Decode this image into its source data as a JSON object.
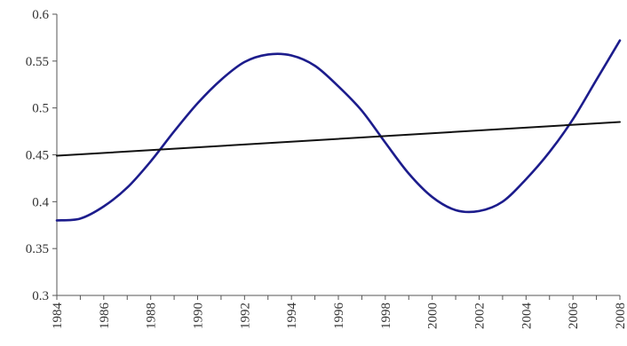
{
  "chart_data": {
    "type": "line",
    "title": "",
    "xlabel": "",
    "ylabel": "",
    "xlim": [
      1984,
      2008
    ],
    "ylim": [
      0.3,
      0.6
    ],
    "y_ticks": [
      "0.3",
      "0.35",
      "0.4",
      "0.45",
      "0.5",
      "0.55",
      "0.6"
    ],
    "y_tick_values": [
      0.3,
      0.35,
      0.4,
      0.45,
      0.5,
      0.55,
      0.6
    ],
    "x_ticks": [
      "1984",
      "1986",
      "1988",
      "1990",
      "1992",
      "1994",
      "1996",
      "1998",
      "2000",
      "2002",
      "2004",
      "2006",
      "2008"
    ],
    "x_tick_values": [
      1984,
      1986,
      1988,
      1990,
      1992,
      1994,
      1996,
      1998,
      2000,
      2002,
      2004,
      2006,
      2008
    ],
    "grid": false,
    "legend": "none",
    "series": [
      {
        "color": "#1c1c8c",
        "x": [
          1984,
          1985,
          1986,
          1987,
          1988,
          1989,
          1990,
          1991,
          1992,
          1993,
          1994,
          1995,
          1996,
          1997,
          1998,
          1999,
          2000,
          2001,
          2002,
          2003,
          2004,
          2005,
          2006,
          2007,
          2008
        ],
        "y": [
          0.38,
          0.382,
          0.395,
          0.415,
          0.443,
          0.475,
          0.505,
          0.53,
          0.549,
          0.557,
          0.556,
          0.545,
          0.523,
          0.497,
          0.463,
          0.43,
          0.405,
          0.391,
          0.39,
          0.4,
          0.424,
          0.453,
          0.488,
          0.53,
          0.572
        ]
      },
      {
        "color": "#111111",
        "x": [
          1984,
          2008
        ],
        "y": [
          0.449,
          0.485
        ]
      }
    ]
  }
}
